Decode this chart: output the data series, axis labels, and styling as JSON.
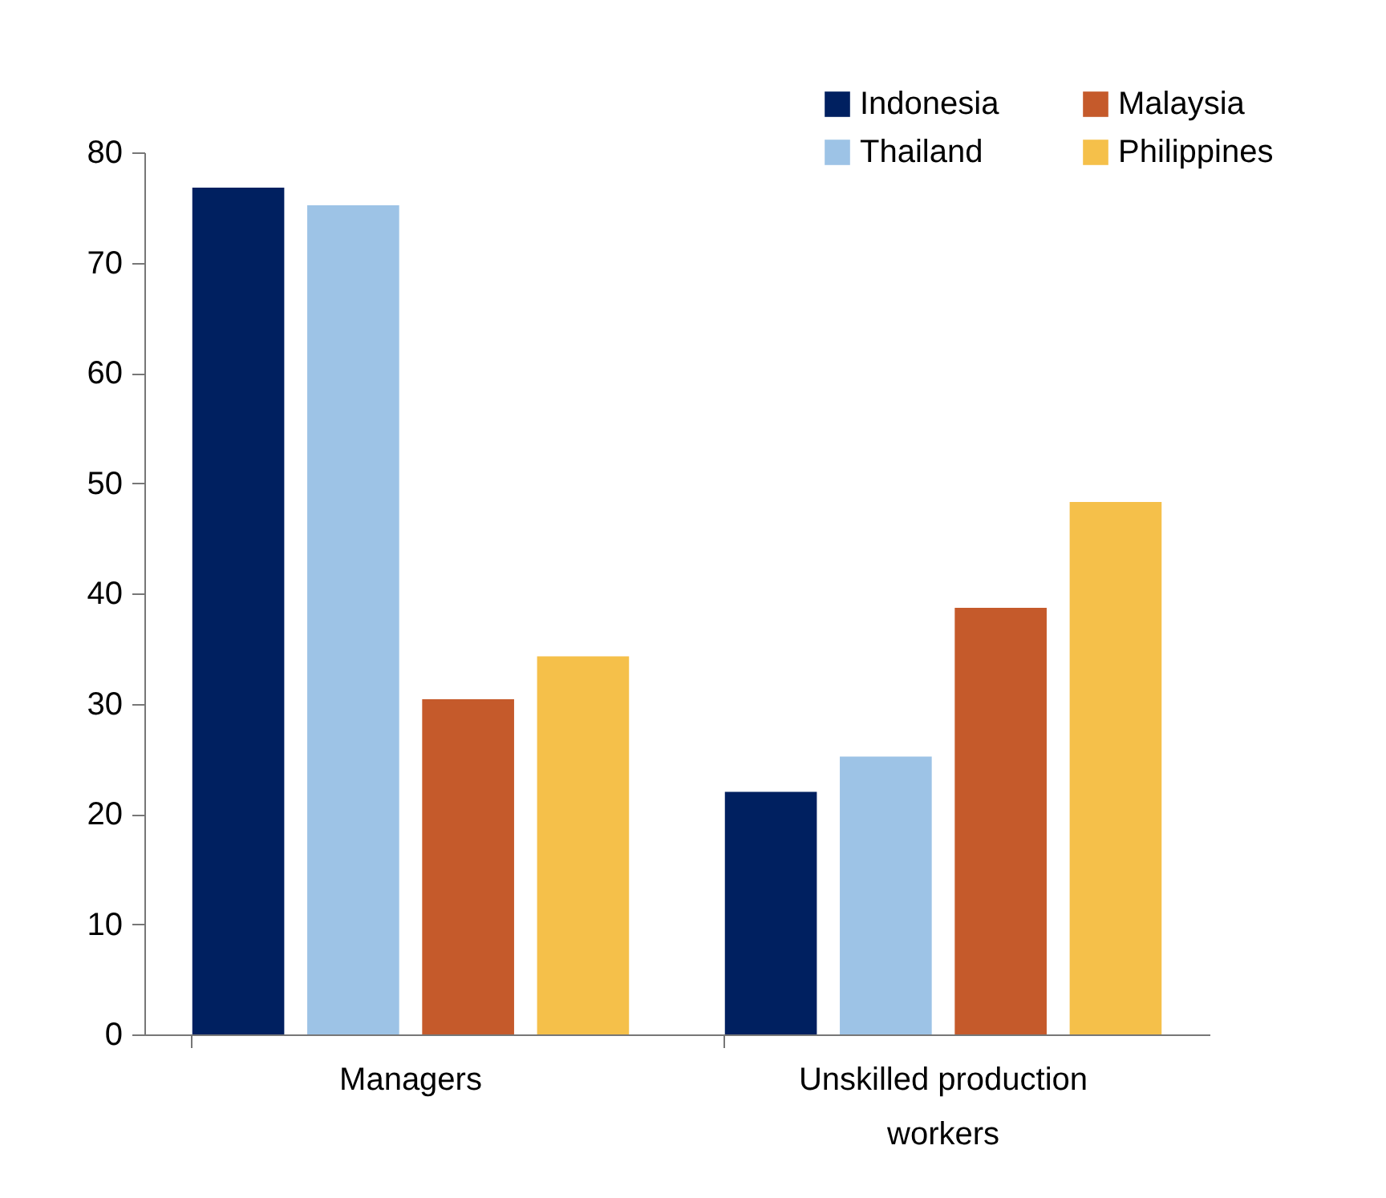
{
  "chart_data": {
    "type": "bar",
    "categories": [
      "Managers",
      "Unskilled production workers"
    ],
    "series": [
      {
        "name": "Indonesia",
        "color": "#002060",
        "values": [
          76.8,
          22.0
        ]
      },
      {
        "name": "Thailand",
        "color": "#9dc3e6",
        "values": [
          75.2,
          25.2
        ]
      },
      {
        "name": "Malaysia",
        "color": "#c55a2b",
        "values": [
          30.4,
          38.7
        ]
      },
      {
        "name": "Philippines",
        "color": "#f5c04a",
        "values": [
          34.3,
          48.3
        ]
      }
    ],
    "ylim": [
      0,
      80
    ],
    "yticks": [
      0,
      10,
      20,
      30,
      40,
      50,
      60,
      70,
      80
    ],
    "grid": false,
    "legend": "top right"
  }
}
